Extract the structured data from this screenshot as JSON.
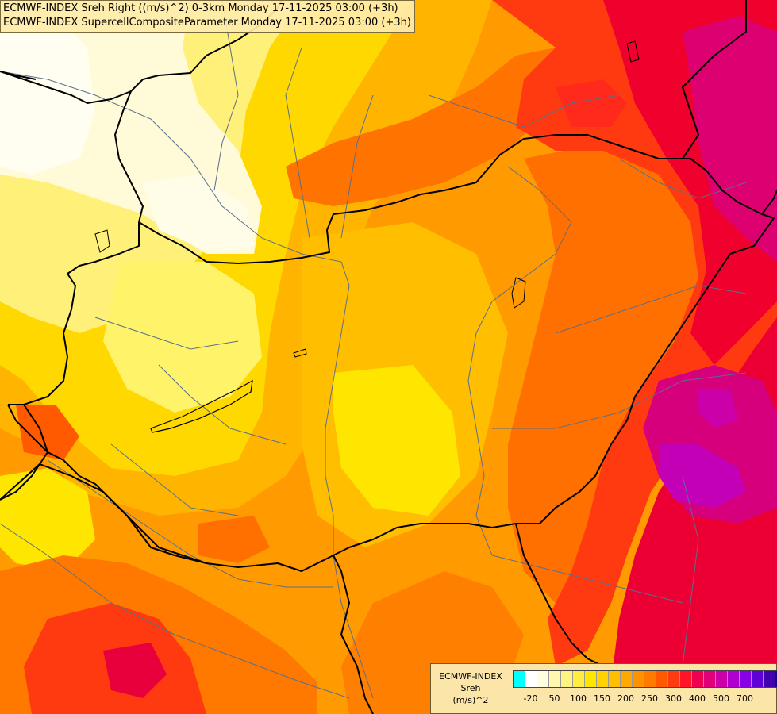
{
  "header": {
    "line1": "ECMWF-INDEX Sreh Right ((m/s)^2) 0-3km Monday 17-11-2025 03:00 (+3h)",
    "line2": "ECMWF-INDEX SupercellCompositeParameter Monday 17-11-2025 03:00 (+3h)"
  },
  "legend": {
    "title_line1": "ECMWF-INDEX",
    "title_line2": "Sreh",
    "title_line3": "(m/s)^2",
    "colors": [
      "#00ffff",
      "#ffffff",
      "#fffde0",
      "#fff8b0",
      "#fff480",
      "#ffee40",
      "#ffe600",
      "#ffd200",
      "#ffbe00",
      "#ffa800",
      "#ff9200",
      "#ff7a00",
      "#ff5a00",
      "#ff3a10",
      "#ff1428",
      "#f00050",
      "#e0007a",
      "#cc00a8",
      "#b000d0",
      "#8800e8",
      "#6000d8",
      "#4000b0",
      "#200080"
    ],
    "tick_labels": [
      "-20",
      "50",
      "100",
      "150",
      "200",
      "250",
      "300",
      "400",
      "500",
      "700"
    ]
  },
  "map": {
    "region": "Hungary and surroundings",
    "palette": {
      "pale": "#fffbe0",
      "light_yellow": "#fff27a",
      "yellow": "#ffe600",
      "gold": "#ffc400",
      "orange": "#ff9a00",
      "dark_orange": "#ff7000",
      "red": "#ff2a1c",
      "crimson": "#e60046",
      "magenta": "#d4007c",
      "purple": "#c000c0",
      "border": "#000000",
      "river": "#5a6f8a"
    }
  }
}
